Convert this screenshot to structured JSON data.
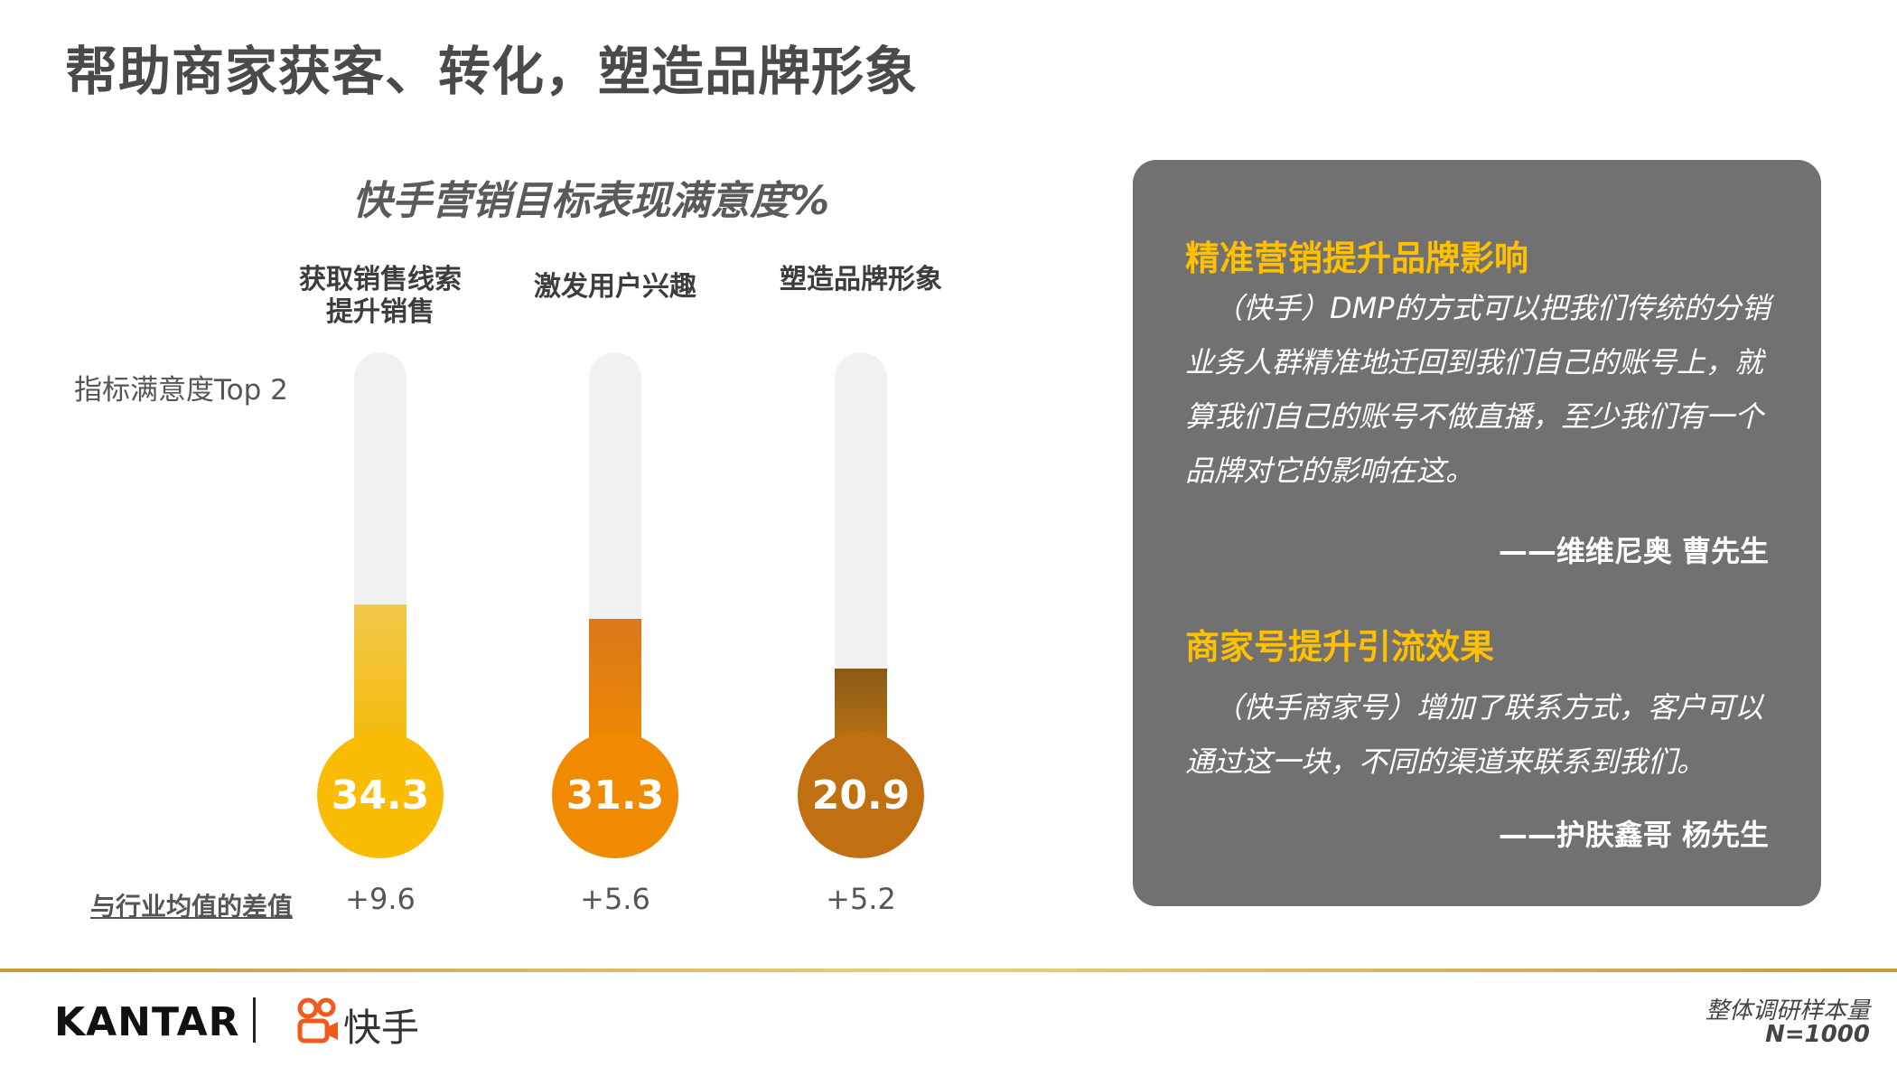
{
  "page_title": "帮助商家获客、转化，塑造品牌形象",
  "chart_data": {
    "type": "bar",
    "title": "快手营销目标表现满意度%",
    "metric_label": "指标满意度Top 2",
    "diff_label": "与行业均值的差值",
    "ylim": [
      0,
      100
    ],
    "categories": [
      {
        "label_lines": [
          "获取销售线索",
          "提升销售"
        ],
        "value": 34.3,
        "value_label": "34.3",
        "diff": "+9.6",
        "color_top": "#f2c84b",
        "color_bottom": "#f5b800",
        "bulb_color": "#fbbc05"
      },
      {
        "label_lines": [
          "激发用户兴趣"
        ],
        "value": 31.3,
        "value_label": "31.3",
        "diff": "+5.6",
        "color_top": "#d9781a",
        "color_bottom": "#f08c00",
        "bulb_color": "#f08a00"
      },
      {
        "label_lines": [
          "塑造品牌形象"
        ],
        "value": 20.9,
        "value_label": "20.9",
        "diff": "+5.2",
        "color_top": "#8a5a16",
        "color_bottom": "#c77a14",
        "bulb_color": "#c07010"
      }
    ]
  },
  "quotes": [
    {
      "title": "精准营销提升品牌影响",
      "body": "（快手）DMP的方式可以把我们传统的分销业务人群精准地迁回到我们自己的账号上，就算我们自己的账号不做直播，至少我们有一个品牌对它的影响在这。",
      "author": "——维维尼奥 曹先生"
    },
    {
      "title": "商家号提升引流效果",
      "body": "（快手商家号）增加了联系方式，客户可以通过这一块，不同的渠道来联系到我们。",
      "author": "——护肤鑫哥 杨先生"
    }
  ],
  "footer": {
    "brand": "KANTAR",
    "partner": "快手",
    "sample_label": "整体调研样本量",
    "sample_n": "N=1000"
  },
  "colors": {
    "accent": "#ffc000",
    "panel": "#717171"
  }
}
